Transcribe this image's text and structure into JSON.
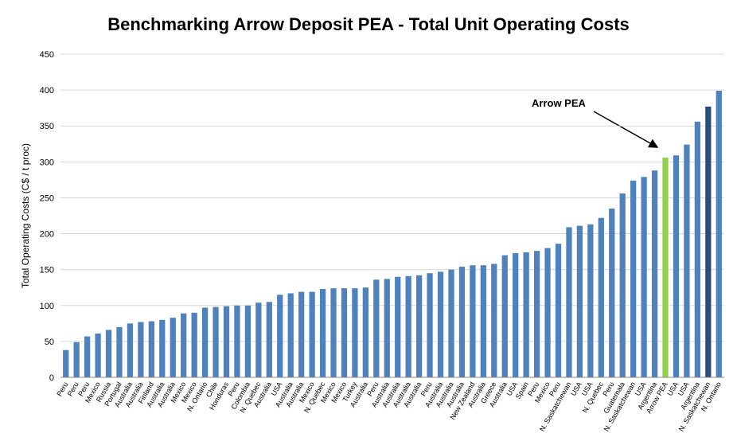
{
  "chart_data": {
    "type": "bar",
    "title": "Benchmarking Arrow Deposit PEA - Total Unit Operating Costs",
    "y_label": "Total Operating Costs (C$ / t proc)",
    "annotation": "Arrow PEA",
    "categories": [
      "Peru",
      "Peru",
      "Peru",
      "Mexico",
      "Russia",
      "Portugal",
      "Australia",
      "Australia",
      "Finland",
      "Australia",
      "Australia",
      "Mexico",
      "Mexico",
      "N. Ontario",
      "Chile",
      "Honduras",
      "Peru",
      "Colombia",
      "N. Quebec",
      "Australia",
      "USA",
      "Australia",
      "Australia",
      "Mexico",
      "N. Quebec",
      "Mexico",
      "Mexico",
      "Turkey",
      "Australia",
      "Peru",
      "Australia",
      "Australia",
      "Australia",
      "Australia",
      "Peru",
      "Australia",
      "Australia",
      "Australia",
      "New Zealand",
      "Australia",
      "Greece",
      "Australia",
      "USA",
      "Spain",
      "Peru",
      "Mexico",
      "Peru",
      "N. Saskatchewan",
      "USA",
      "USA",
      "N. Quebec",
      "Peru",
      "Guatemala",
      "N. Saskatchewan",
      "USA",
      "Argentina",
      "Arrow PEA",
      "USA",
      "USA",
      "Argentina",
      "N. Saskatchewan",
      "N. Ontario"
    ],
    "values": [
      38,
      49,
      57,
      61,
      66,
      70,
      75,
      77,
      78,
      80,
      83,
      89,
      90,
      97,
      98,
      99,
      100,
      100,
      104,
      105,
      115,
      117,
      119,
      119,
      123,
      124,
      124,
      124,
      125,
      136,
      137,
      140,
      141,
      142,
      145,
      147,
      150,
      154,
      156,
      156,
      158,
      170,
      173,
      174,
      176,
      180,
      186,
      209,
      211,
      213,
      222,
      235,
      256,
      274,
      279,
      288,
      306,
      309,
      324,
      356,
      377,
      399
    ],
    "color": "#4f81bd",
    "highlight": {
      "Arrow PEA": "#92d050",
      "N. Saskatchewan": "#2c4d75"
    },
    "ylim": [
      0,
      450
    ],
    "yticks": [
      0,
      50,
      100,
      150,
      200,
      250,
      300,
      350,
      400,
      450
    ],
    "grid": true
  }
}
